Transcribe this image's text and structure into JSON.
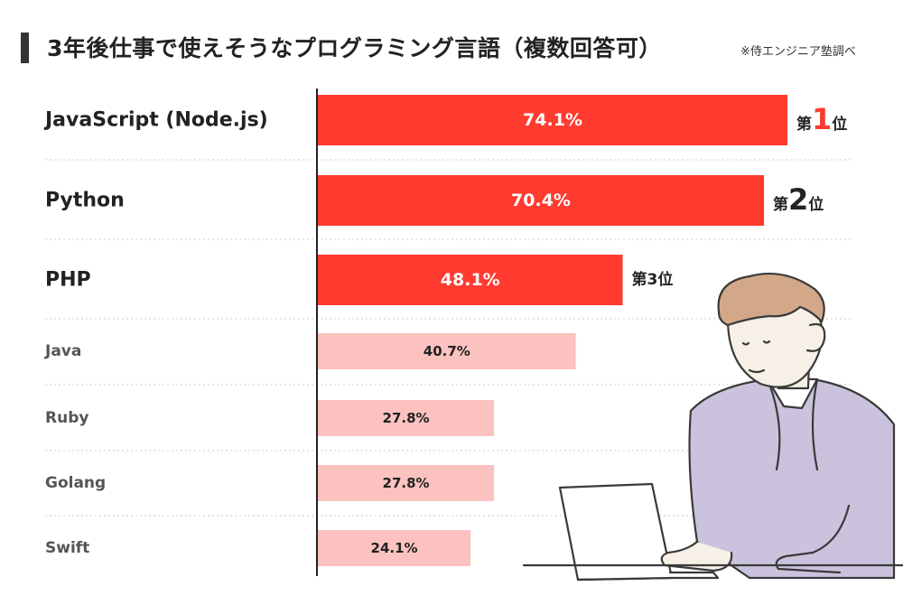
{
  "title": "3年後仕事で使えそうなプログラミング言語（複数回答可）",
  "source_note": "※侍エンジニア塾調べ",
  "colors": {
    "top": "#ff3b30",
    "rest": "#fbc2bf",
    "axis": "#222222",
    "grid": "#cccccc",
    "text_dark": "#222222",
    "text_muted": "#555555"
  },
  "rank_prefix": "第",
  "rank_suffix": "位",
  "chart_data": {
    "type": "bar",
    "orientation": "horizontal",
    "title": "3年後仕事で使えそうなプログラミング言語（複数回答可）",
    "categories": [
      "JavaScript (Node.js)",
      "Python",
      "PHP",
      "Java",
      "Ruby",
      "Golang",
      "Swift"
    ],
    "values": [
      74.1,
      70.4,
      48.1,
      40.7,
      27.8,
      27.8,
      24.1
    ],
    "value_labels": [
      "74.1%",
      "70.4%",
      "48.1%",
      "40.7%",
      "27.8%",
      "27.8%",
      "24.1%"
    ],
    "ranks": [
      "1",
      "2",
      "3"
    ],
    "unit": "%",
    "xlim": [
      0,
      75
    ],
    "grid": false,
    "legend": "none"
  }
}
